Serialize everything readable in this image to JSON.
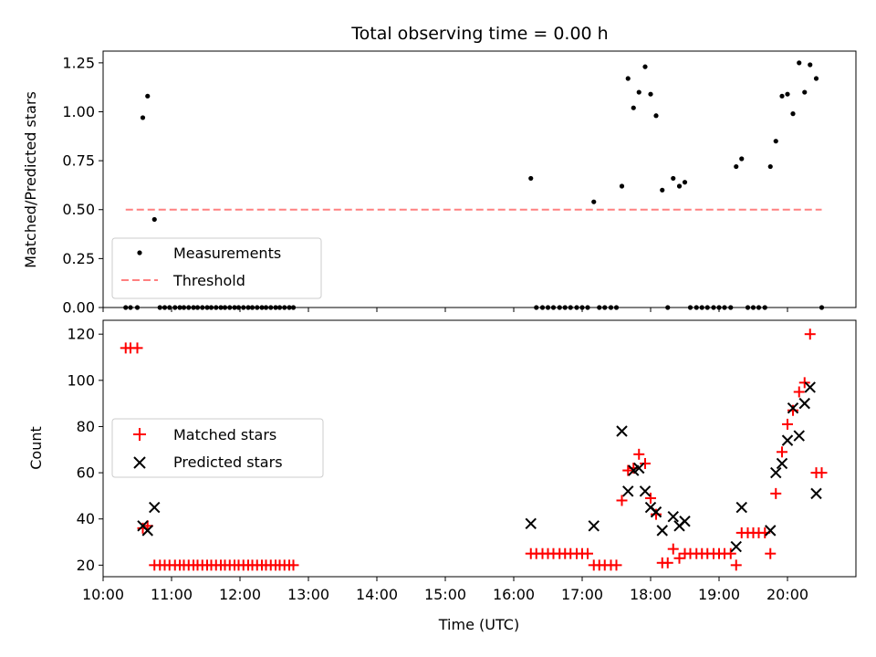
{
  "figure": {
    "title": "Total observing time = 0.00 h"
  },
  "chart_data": [
    {
      "type": "scatter",
      "ylabel": "Matched/Predicted stars",
      "xlabel": "",
      "ylim": [
        0,
        1.31
      ],
      "yticks": [
        0.0,
        0.25,
        0.5,
        0.75,
        1.0,
        1.25
      ],
      "ytick_labels": [
        "0.00",
        "0.25",
        "0.50",
        "0.75",
        "1.00",
        "1.25"
      ],
      "legend_position": "lower-left",
      "series": [
        {
          "name": "Measurements",
          "marker": "dot",
          "color": "#000000",
          "points": [
            [
              10.33,
              0
            ],
            [
              10.4,
              0
            ],
            [
              10.5,
              0
            ],
            [
              10.58,
              0.97
            ],
            [
              10.65,
              1.08
            ],
            [
              10.75,
              0.45
            ],
            [
              10.83,
              0
            ],
            [
              10.9,
              0
            ],
            [
              10.97,
              0
            ],
            [
              11.05,
              0
            ],
            [
              11.12,
              0
            ],
            [
              11.18,
              0
            ],
            [
              11.25,
              0
            ],
            [
              11.32,
              0
            ],
            [
              11.38,
              0
            ],
            [
              11.45,
              0
            ],
            [
              11.52,
              0
            ],
            [
              11.58,
              0
            ],
            [
              11.65,
              0
            ],
            [
              11.72,
              0
            ],
            [
              11.78,
              0
            ],
            [
              11.85,
              0
            ],
            [
              11.92,
              0
            ],
            [
              11.98,
              0
            ],
            [
              12.05,
              0
            ],
            [
              12.12,
              0
            ],
            [
              12.18,
              0
            ],
            [
              12.25,
              0
            ],
            [
              12.32,
              0
            ],
            [
              12.38,
              0
            ],
            [
              12.45,
              0
            ],
            [
              12.52,
              0
            ],
            [
              12.58,
              0
            ],
            [
              12.65,
              0
            ],
            [
              12.72,
              0
            ],
            [
              12.78,
              0
            ],
            [
              16.25,
              0.66
            ],
            [
              16.33,
              0
            ],
            [
              16.42,
              0
            ],
            [
              16.5,
              0
            ],
            [
              16.58,
              0
            ],
            [
              16.67,
              0
            ],
            [
              16.75,
              0
            ],
            [
              16.83,
              0
            ],
            [
              16.92,
              0
            ],
            [
              17.0,
              0
            ],
            [
              17.08,
              0
            ],
            [
              17.17,
              0.54
            ],
            [
              17.25,
              0
            ],
            [
              17.33,
              0
            ],
            [
              17.42,
              0
            ],
            [
              17.5,
              0
            ],
            [
              17.58,
              0.62
            ],
            [
              17.67,
              1.17
            ],
            [
              17.75,
              1.02
            ],
            [
              17.83,
              1.1
            ],
            [
              17.92,
              1.23
            ],
            [
              18.0,
              1.09
            ],
            [
              18.08,
              0.98
            ],
            [
              18.17,
              0.6
            ],
            [
              18.25,
              0
            ],
            [
              18.33,
              0.66
            ],
            [
              18.42,
              0.62
            ],
            [
              18.5,
              0.64
            ],
            [
              18.58,
              0
            ],
            [
              18.67,
              0
            ],
            [
              18.75,
              0
            ],
            [
              18.83,
              0
            ],
            [
              18.92,
              0
            ],
            [
              19.0,
              0
            ],
            [
              19.08,
              0
            ],
            [
              19.17,
              0
            ],
            [
              19.25,
              0.72
            ],
            [
              19.33,
              0.76
            ],
            [
              19.42,
              0
            ],
            [
              19.5,
              0
            ],
            [
              19.58,
              0
            ],
            [
              19.67,
              0
            ],
            [
              19.75,
              0.72
            ],
            [
              19.83,
              0.85
            ],
            [
              19.92,
              1.08
            ],
            [
              20.0,
              1.09
            ],
            [
              20.08,
              0.99
            ],
            [
              20.17,
              1.25
            ],
            [
              20.25,
              1.1
            ],
            [
              20.33,
              1.24
            ],
            [
              20.42,
              1.17
            ],
            [
              20.5,
              0
            ]
          ]
        },
        {
          "name": "Threshold",
          "type": "line",
          "style": "dashed",
          "color": "#ff8080",
          "points": [
            [
              10.33,
              0.5
            ],
            [
              20.5,
              0.5
            ]
          ]
        }
      ]
    },
    {
      "type": "scatter",
      "xlabel": "Time (UTC)",
      "ylabel": "Count",
      "xlim": [
        10.0,
        21.0
      ],
      "ylim": [
        15,
        126
      ],
      "yticks": [
        20,
        40,
        60,
        80,
        100,
        120
      ],
      "ytick_labels": [
        "20",
        "40",
        "60",
        "80",
        "100",
        "120"
      ],
      "xticks": [
        10,
        11,
        12,
        13,
        14,
        15,
        16,
        17,
        18,
        19,
        20
      ],
      "xtick_labels": [
        "10:00",
        "11:00",
        "12:00",
        "13:00",
        "14:00",
        "15:00",
        "16:00",
        "17:00",
        "18:00",
        "19:00",
        "20:00"
      ],
      "legend_position": "center-left",
      "series": [
        {
          "name": "Matched stars",
          "marker": "plus",
          "color": "#ff0000",
          "points": [
            [
              10.33,
              114
            ],
            [
              10.4,
              114
            ],
            [
              10.5,
              114
            ],
            [
              10.58,
              36
            ],
            [
              10.65,
              37
            ],
            [
              10.75,
              20
            ],
            [
              10.83,
              20
            ],
            [
              10.9,
              20
            ],
            [
              10.97,
              20
            ],
            [
              11.05,
              20
            ],
            [
              11.12,
              20
            ],
            [
              11.18,
              20
            ],
            [
              11.25,
              20
            ],
            [
              11.32,
              20
            ],
            [
              11.38,
              20
            ],
            [
              11.45,
              20
            ],
            [
              11.52,
              20
            ],
            [
              11.58,
              20
            ],
            [
              11.65,
              20
            ],
            [
              11.72,
              20
            ],
            [
              11.78,
              20
            ],
            [
              11.85,
              20
            ],
            [
              11.92,
              20
            ],
            [
              11.98,
              20
            ],
            [
              12.05,
              20
            ],
            [
              12.12,
              20
            ],
            [
              12.18,
              20
            ],
            [
              12.25,
              20
            ],
            [
              12.32,
              20
            ],
            [
              12.38,
              20
            ],
            [
              12.45,
              20
            ],
            [
              12.52,
              20
            ],
            [
              12.58,
              20
            ],
            [
              12.65,
              20
            ],
            [
              12.72,
              20
            ],
            [
              12.78,
              20
            ],
            [
              16.25,
              25
            ],
            [
              16.33,
              25
            ],
            [
              16.42,
              25
            ],
            [
              16.5,
              25
            ],
            [
              16.58,
              25
            ],
            [
              16.67,
              25
            ],
            [
              16.75,
              25
            ],
            [
              16.83,
              25
            ],
            [
              16.92,
              25
            ],
            [
              17.0,
              25
            ],
            [
              17.08,
              25
            ],
            [
              17.17,
              20
            ],
            [
              17.25,
              20
            ],
            [
              17.33,
              20
            ],
            [
              17.42,
              20
            ],
            [
              17.5,
              20
            ],
            [
              17.58,
              48
            ],
            [
              17.67,
              61
            ],
            [
              17.75,
              62
            ],
            [
              17.83,
              68
            ],
            [
              17.92,
              64
            ],
            [
              18.0,
              49
            ],
            [
              18.08,
              42
            ],
            [
              18.17,
              21
            ],
            [
              18.25,
              21
            ],
            [
              18.33,
              27
            ],
            [
              18.42,
              23
            ],
            [
              18.5,
              25
            ],
            [
              18.58,
              25
            ],
            [
              18.67,
              25
            ],
            [
              18.75,
              25
            ],
            [
              18.83,
              25
            ],
            [
              18.92,
              25
            ],
            [
              19.0,
              25
            ],
            [
              19.08,
              25
            ],
            [
              19.17,
              25
            ],
            [
              19.25,
              20
            ],
            [
              19.33,
              34
            ],
            [
              19.42,
              34
            ],
            [
              19.5,
              34
            ],
            [
              19.58,
              34
            ],
            [
              19.67,
              34
            ],
            [
              19.75,
              25
            ],
            [
              19.83,
              51
            ],
            [
              19.92,
              69
            ],
            [
              20.0,
              81
            ],
            [
              20.08,
              87
            ],
            [
              20.17,
              95
            ],
            [
              20.25,
              99
            ],
            [
              20.33,
              120
            ],
            [
              20.42,
              60
            ],
            [
              20.5,
              60
            ]
          ]
        },
        {
          "name": "Predicted stars",
          "marker": "x",
          "color": "#000000",
          "points": [
            [
              10.58,
              37
            ],
            [
              10.65,
              35
            ],
            [
              10.75,
              45
            ],
            [
              16.25,
              38
            ],
            [
              17.17,
              37
            ],
            [
              17.58,
              78
            ],
            [
              17.67,
              52
            ],
            [
              17.75,
              61
            ],
            [
              17.83,
              62
            ],
            [
              17.92,
              52
            ],
            [
              18.0,
              45
            ],
            [
              18.08,
              43
            ],
            [
              18.17,
              35
            ],
            [
              18.33,
              41
            ],
            [
              18.42,
              37
            ],
            [
              18.5,
              39
            ],
            [
              19.25,
              28
            ],
            [
              19.33,
              45
            ],
            [
              19.75,
              35
            ],
            [
              19.83,
              60
            ],
            [
              19.92,
              64
            ],
            [
              20.0,
              74
            ],
            [
              20.08,
              88
            ],
            [
              20.17,
              76
            ],
            [
              20.25,
              90
            ],
            [
              20.33,
              97
            ],
            [
              20.42,
              51
            ]
          ]
        }
      ]
    }
  ]
}
